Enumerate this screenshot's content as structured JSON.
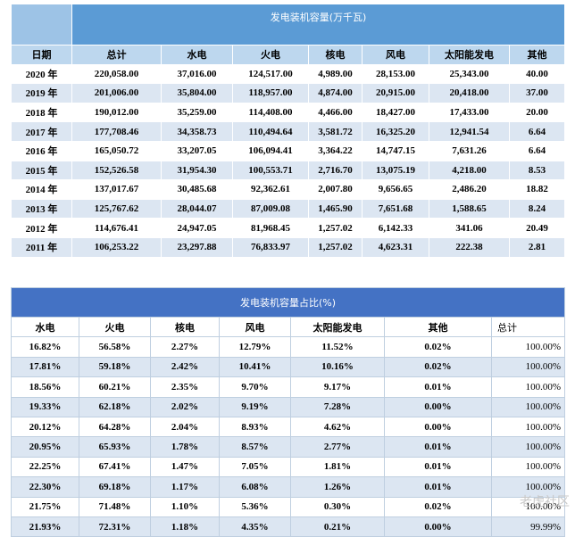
{
  "table1": {
    "title": "发电装机容量(万千瓦)",
    "header": [
      "日期",
      "总计",
      "水电",
      "火电",
      "核电",
      "风电",
      "太阳能发电",
      "其他"
    ],
    "rows": [
      [
        "2020 年",
        "220,058.00",
        "37,016.00",
        "124,517.00",
        "4,989.00",
        "28,153.00",
        "25,343.00",
        "40.00"
      ],
      [
        "2019 年",
        "201,006.00",
        "35,804.00",
        "118,957.00",
        "4,874.00",
        "20,915.00",
        "20,418.00",
        "37.00"
      ],
      [
        "2018 年",
        "190,012.00",
        "35,259.00",
        "114,408.00",
        "4,466.00",
        "18,427.00",
        "17,433.00",
        "20.00"
      ],
      [
        "2017 年",
        "177,708.46",
        "34,358.73",
        "110,494.64",
        "3,581.72",
        "16,325.20",
        "12,941.54",
        "6.64"
      ],
      [
        "2016 年",
        "165,050.72",
        "33,207.05",
        "106,094.41",
        "3,364.22",
        "14,747.15",
        "7,631.26",
        "6.64"
      ],
      [
        "2015 年",
        "152,526.58",
        "31,954.30",
        "100,553.71",
        "2,716.70",
        "13,075.19",
        "4,218.00",
        "8.53"
      ],
      [
        "2014 年",
        "137,017.67",
        "30,485.68",
        "92,362.61",
        "2,007.80",
        "9,656.65",
        "2,486.20",
        "18.82"
      ],
      [
        "2013 年",
        "125,767.62",
        "28,044.07",
        "87,009.08",
        "1,465.90",
        "7,651.68",
        "1,588.65",
        "8.24"
      ],
      [
        "2012 年",
        "114,676.41",
        "24,947.05",
        "81,968.45",
        "1,257.02",
        "6,142.33",
        "341.06",
        "20.49"
      ],
      [
        "2011 年",
        "106,253.22",
        "23,297.88",
        "76,833.97",
        "1,257.02",
        "4,623.31",
        "222.38",
        "2.81"
      ]
    ]
  },
  "table2": {
    "title": "发电装机容量占比(%)",
    "header": [
      "水电",
      "火电",
      "核电",
      "风电",
      "太阳能发电",
      "其他",
      "总计"
    ],
    "rows": [
      [
        "16.82%",
        "56.58%",
        "2.27%",
        "12.79%",
        "11.52%",
        "0.02%",
        "100.00%"
      ],
      [
        "17.81%",
        "59.18%",
        "2.42%",
        "10.41%",
        "10.16%",
        "0.02%",
        "100.00%"
      ],
      [
        "18.56%",
        "60.21%",
        "2.35%",
        "9.70%",
        "9.17%",
        "0.01%",
        "100.00%"
      ],
      [
        "19.33%",
        "62.18%",
        "2.02%",
        "9.19%",
        "7.28%",
        "0.00%",
        "100.00%"
      ],
      [
        "20.12%",
        "64.28%",
        "2.04%",
        "8.93%",
        "4.62%",
        "0.00%",
        "100.00%"
      ],
      [
        "20.95%",
        "65.93%",
        "1.78%",
        "8.57%",
        "2.77%",
        "0.01%",
        "100.00%"
      ],
      [
        "22.25%",
        "67.41%",
        "1.47%",
        "7.05%",
        "1.81%",
        "0.01%",
        "100.00%"
      ],
      [
        "22.30%",
        "69.18%",
        "1.17%",
        "6.08%",
        "1.26%",
        "0.01%",
        "100.00%"
      ],
      [
        "21.75%",
        "71.48%",
        "1.10%",
        "5.36%",
        "0.30%",
        "0.02%",
        "100.00%"
      ],
      [
        "21.93%",
        "72.31%",
        "1.18%",
        "4.35%",
        "0.21%",
        "0.00%",
        "99.99%"
      ]
    ]
  },
  "watermark": "老虎社区"
}
